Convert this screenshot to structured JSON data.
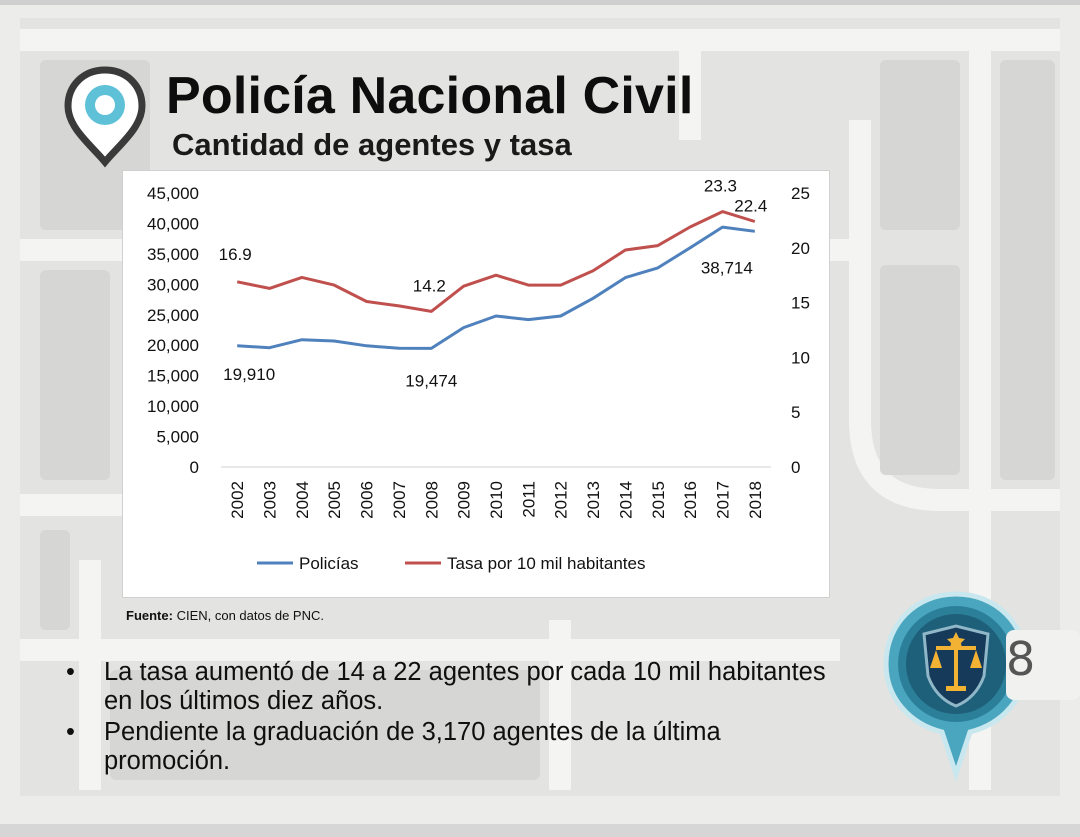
{
  "slide": {
    "title": "Policía Nacional Civil",
    "subtitle": "Cantidad de agentes y tasa",
    "source_label": "Fuente:",
    "source_text": " CIEN, con datos de PNC.",
    "bullets": [
      "La tasa aumentó de 14 a 22 agentes por cada 10 mil habitantes en los últimos diez años.",
      "Pendiente la graduación de 3,170 agentes de la última promoción."
    ],
    "bullet_symbol": "•",
    "page_number": "8",
    "icons": [
      "location-pin-icon",
      "shield-scales-icon"
    ]
  },
  "chart_data": {
    "type": "line",
    "x": [
      "2002",
      "2003",
      "2004",
      "2005",
      "2006",
      "2007",
      "2008",
      "2009",
      "2010",
      "2011",
      "2012",
      "2013",
      "2014",
      "2015",
      "2016",
      "2017",
      "2018"
    ],
    "y_left_ticks": [
      "0",
      "5,000",
      "10,000",
      "15,000",
      "20,000",
      "25,000",
      "30,000",
      "35,000",
      "40,000",
      "45,000"
    ],
    "y_left_lim": [
      0,
      45000
    ],
    "y_right_ticks": [
      "0",
      "5",
      "10",
      "15",
      "20",
      "25"
    ],
    "y_right_lim": [
      0,
      25
    ],
    "series": [
      {
        "name": "Policías",
        "axis": "left",
        "color": "#4f81bd",
        "values": [
          19910,
          19600,
          20900,
          20700,
          19900,
          19500,
          19474,
          22900,
          24800,
          24200,
          24800,
          27700,
          31100,
          32700,
          36000,
          39400,
          38714
        ]
      },
      {
        "name": "Tasa por 10 mil habitantes",
        "axis": "right",
        "color": "#c0504d",
        "values": [
          16.9,
          16.3,
          17.3,
          16.6,
          15.1,
          14.7,
          14.2,
          16.5,
          17.5,
          16.6,
          16.6,
          17.9,
          19.8,
          20.2,
          21.9,
          23.3,
          22.4
        ]
      }
    ],
    "data_labels": [
      {
        "series": 0,
        "index": 0,
        "text": "19,910"
      },
      {
        "series": 0,
        "index": 6,
        "text": "19,474"
      },
      {
        "series": 0,
        "index": 16,
        "text": "38,714"
      },
      {
        "series": 1,
        "index": 0,
        "text": "16.9"
      },
      {
        "series": 1,
        "index": 6,
        "text": "14.2"
      },
      {
        "series": 1,
        "index": 15,
        "text": "23.3"
      },
      {
        "series": 1,
        "index": 16,
        "text": "22.4"
      }
    ],
    "grid": false,
    "legend_position": "bottom"
  }
}
